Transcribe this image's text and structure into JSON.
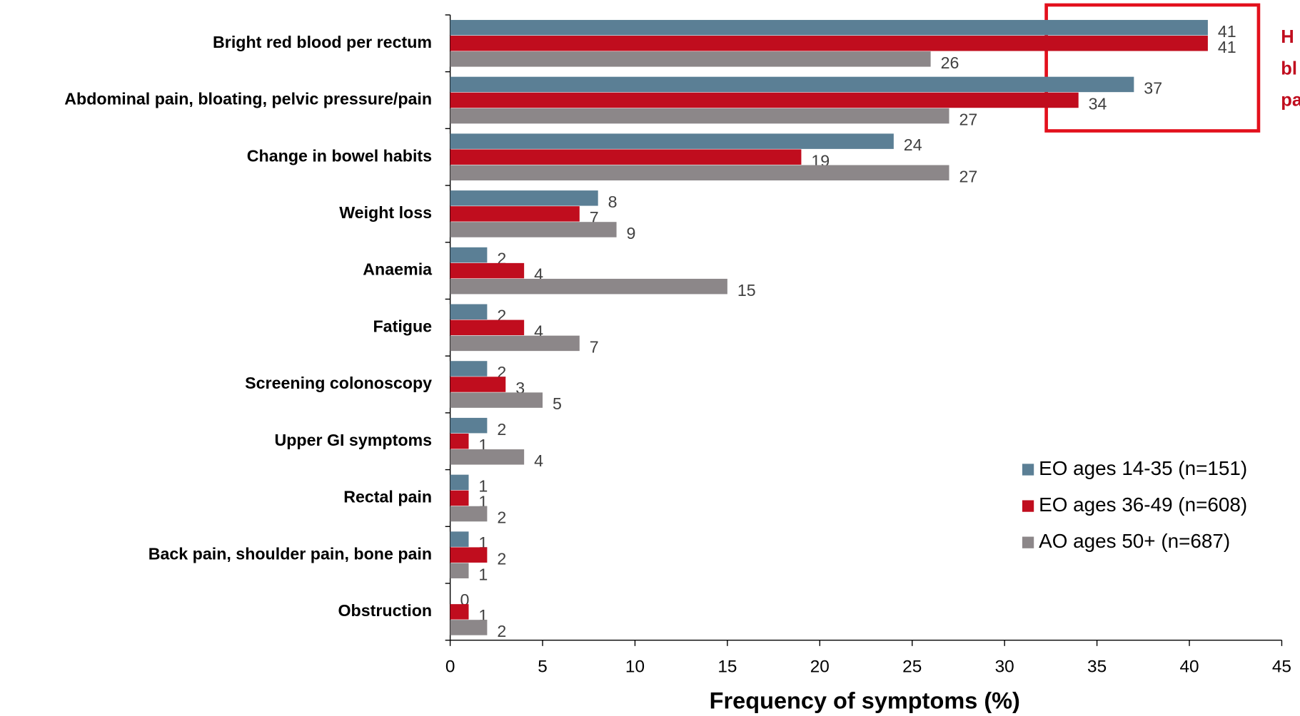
{
  "chart_data": {
    "type": "bar",
    "orientation": "horizontal",
    "xlabel": "Frequency of symptoms (%)",
    "categories": [
      "Bright red blood per rectum",
      "Abdominal pain, bloating, pelvic pressure/pain",
      "Change in bowel habits",
      "Weight loss",
      "Anaemia",
      "Fatigue",
      "Screening colonoscopy",
      "Upper GI symptoms",
      "Rectal pain",
      "Back pain, shoulder pain, bone pain",
      "Obstruction"
    ],
    "series": [
      {
        "name": "EO ages 14-35 (n=151)",
        "color": "#5b7f95",
        "values": [
          41,
          37,
          24,
          8,
          2,
          2,
          2,
          2,
          1,
          1,
          0
        ]
      },
      {
        "name": "EO ages 36-49 (n=608)",
        "color": "#c00d1e",
        "values": [
          41,
          34,
          19,
          7,
          4,
          4,
          3,
          1,
          1,
          2,
          1
        ]
      },
      {
        "name": "AO ages 50+ (n=687)",
        "color": "#8c8789",
        "values": [
          26,
          27,
          27,
          9,
          15,
          7,
          5,
          4,
          2,
          1,
          2
        ]
      }
    ],
    "xlim": [
      0,
      45
    ],
    "xticks": [
      0,
      5,
      10,
      15,
      20,
      25,
      30,
      35,
      40,
      45
    ],
    "legend": "lower right",
    "annotation": [
      "H",
      "bl",
      "pa"
    ]
  }
}
